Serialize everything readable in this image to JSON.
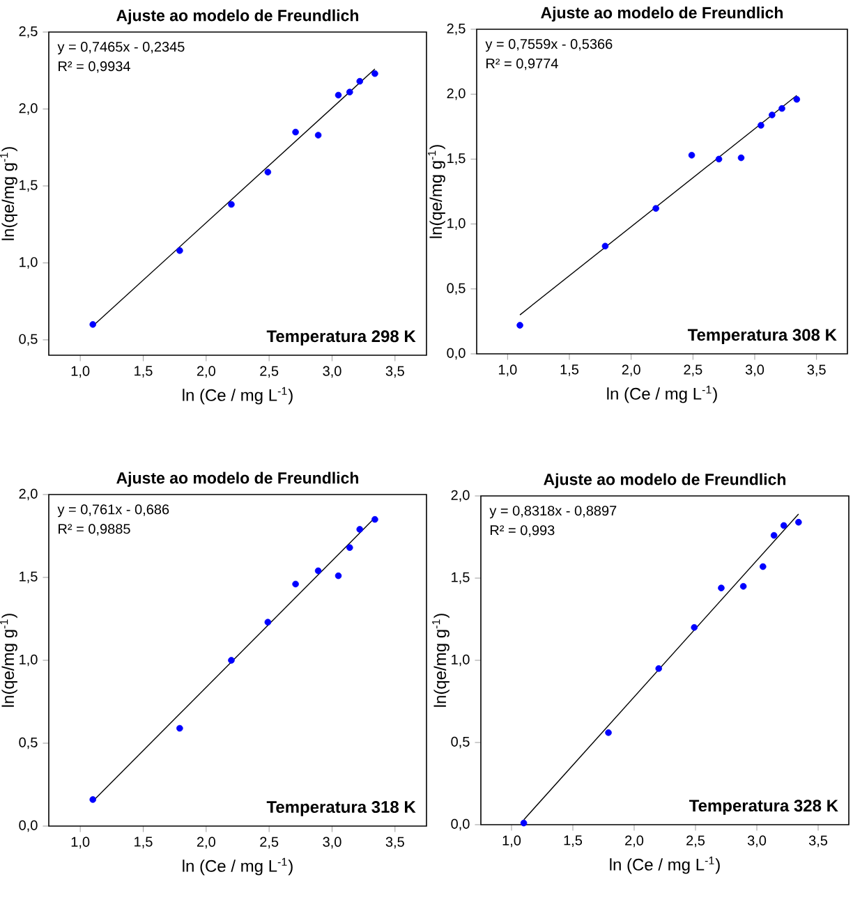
{
  "chart_data": [
    {
      "type": "scatter",
      "title": "Ajuste ao modelo de Freundlich",
      "xlabel": "ln (Ce / mg L$^{-1}$)",
      "ylabel": "ln(qe/mg g$^{-1}$)",
      "annotations": [
        "y = 0,7465x - 0,2345",
        "R² = 0,9934",
        "Temperatura 298 K"
      ],
      "xlim": [
        0.75,
        3.75
      ],
      "ylim": [
        0.4,
        2.5
      ],
      "xticks": [
        {
          "value": 1.0,
          "label": "1,0"
        },
        {
          "value": 1.5,
          "label": "1,5"
        },
        {
          "value": 2.0,
          "label": "2,0"
        },
        {
          "value": 2.5,
          "label": "2,5"
        },
        {
          "value": 3.0,
          "label": "3,0"
        },
        {
          "value": 3.5,
          "label": "3,5"
        }
      ],
      "yticks": [
        {
          "value": 0.5,
          "label": "0,5"
        },
        {
          "value": 1.0,
          "label": "1,0"
        },
        {
          "value": 1.5,
          "label": "1,5"
        },
        {
          "value": 2.0,
          "label": "2,0"
        },
        {
          "value": 2.5,
          "label": "2,5"
        }
      ],
      "grid": false,
      "series": [
        {
          "marker": "circle",
          "color": "#0000ff",
          "x": [
            1.1,
            1.79,
            2.2,
            2.49,
            2.71,
            2.89,
            3.05,
            3.14,
            3.22,
            3.34
          ],
          "values": [
            0.6,
            1.08,
            1.38,
            1.59,
            1.85,
            1.83,
            2.09,
            2.11,
            2.18,
            2.23
          ]
        },
        {
          "type": "line",
          "marker": "none",
          "color": "#000000",
          "x": [
            1.1,
            3.34
          ],
          "values": [
            0.59,
            2.26
          ]
        }
      ]
    },
    {
      "type": "scatter",
      "title": "Ajuste ao modelo de Freundlich",
      "xlabel": "ln (Ce / mg L$^{-1}$)",
      "ylabel": "ln(qe/mg g$^{-1}$)",
      "annotations": [
        "y = 0,7559x - 0,5366",
        "R² = 0,9774",
        "Temperatura 308 K"
      ],
      "xlim": [
        0.75,
        3.75
      ],
      "ylim": [
        0.0,
        2.5
      ],
      "xticks": [
        {
          "value": 1.0,
          "label": "1,0"
        },
        {
          "value": 1.5,
          "label": "1,5"
        },
        {
          "value": 2.0,
          "label": "2,0"
        },
        {
          "value": 2.5,
          "label": "2,5"
        },
        {
          "value": 3.0,
          "label": "3,0"
        },
        {
          "value": 3.5,
          "label": "3,5"
        }
      ],
      "yticks": [
        {
          "value": 0.0,
          "label": "0,0"
        },
        {
          "value": 0.5,
          "label": "0,5"
        },
        {
          "value": 1.0,
          "label": "1,0"
        },
        {
          "value": 1.5,
          "label": "1,5"
        },
        {
          "value": 2.0,
          "label": "2,0"
        },
        {
          "value": 2.5,
          "label": "2,5"
        }
      ],
      "grid": false,
      "series": [
        {
          "marker": "circle",
          "color": "#0000ff",
          "x": [
            1.1,
            1.79,
            2.2,
            2.49,
            2.71,
            2.89,
            3.05,
            3.14,
            3.22,
            3.34
          ],
          "values": [
            0.22,
            0.83,
            1.12,
            1.53,
            1.5,
            1.51,
            1.76,
            1.84,
            1.89,
            1.96
          ]
        },
        {
          "type": "line",
          "marker": "none",
          "color": "#000000",
          "x": [
            1.1,
            3.34
          ],
          "values": [
            0.3,
            1.99
          ]
        }
      ]
    },
    {
      "type": "scatter",
      "title": "Ajuste ao modelo de Freundlich",
      "xlabel": "ln (Ce / mg L$^{-1}$)",
      "ylabel": "ln(qe/mg g$^{-1}$)",
      "annotations": [
        "y = 0,761x - 0,686",
        "R² = 0,9885",
        "Temperatura 318 K"
      ],
      "xlim": [
        0.75,
        3.75
      ],
      "ylim": [
        0.0,
        2.0
      ],
      "xticks": [
        {
          "value": 1.0,
          "label": "1,0"
        },
        {
          "value": 1.5,
          "label": "1,5"
        },
        {
          "value": 2.0,
          "label": "2,0"
        },
        {
          "value": 2.5,
          "label": "2,5"
        },
        {
          "value": 3.0,
          "label": "3,0"
        },
        {
          "value": 3.5,
          "label": "3,5"
        }
      ],
      "yticks": [
        {
          "value": 0.0,
          "label": "0,0"
        },
        {
          "value": 0.5,
          "label": "0,5"
        },
        {
          "value": 1.0,
          "label": "1,0"
        },
        {
          "value": 1.5,
          "label": "1,5"
        },
        {
          "value": 2.0,
          "label": "2,0"
        }
      ],
      "grid": false,
      "series": [
        {
          "marker": "circle",
          "color": "#0000ff",
          "x": [
            1.1,
            1.79,
            2.2,
            2.49,
            2.71,
            2.89,
            3.05,
            3.14,
            3.22,
            3.34
          ],
          "values": [
            0.16,
            0.59,
            1.0,
            1.23,
            1.46,
            1.54,
            1.51,
            1.68,
            1.79,
            1.85
          ]
        },
        {
          "type": "line",
          "marker": "none",
          "color": "#000000",
          "x": [
            1.1,
            3.34
          ],
          "values": [
            0.15,
            1.86
          ]
        }
      ]
    },
    {
      "type": "scatter",
      "title": "Ajuste ao modelo de Freundlich",
      "xlabel": "ln (Ce / mg L$^{-1}$)",
      "ylabel": "ln(qe/mg g$^{-1}$)",
      "annotations": [
        "y = 0,8318x - 0,8897",
        "R² = 0,993",
        "Temperatura 328 K"
      ],
      "xlim": [
        0.75,
        3.75
      ],
      "ylim": [
        0.0,
        2.0
      ],
      "xticks": [
        {
          "value": 1.0,
          "label": "1,0"
        },
        {
          "value": 1.5,
          "label": "1,5"
        },
        {
          "value": 2.0,
          "label": "2,0"
        },
        {
          "value": 2.5,
          "label": "2,5"
        },
        {
          "value": 3.0,
          "label": "3,0"
        },
        {
          "value": 3.5,
          "label": "3,5"
        }
      ],
      "yticks": [
        {
          "value": 0.0,
          "label": "0,0"
        },
        {
          "value": 0.5,
          "label": "0,5"
        },
        {
          "value": 1.0,
          "label": "1,0"
        },
        {
          "value": 1.5,
          "label": "1,5"
        },
        {
          "value": 2.0,
          "label": "2,0"
        }
      ],
      "grid": false,
      "series": [
        {
          "marker": "circle",
          "color": "#0000ff",
          "x": [
            1.1,
            1.79,
            2.2,
            2.49,
            2.71,
            2.89,
            3.05,
            3.14,
            3.22,
            3.34
          ],
          "values": [
            0.01,
            0.56,
            0.95,
            1.2,
            1.44,
            1.45,
            1.57,
            1.76,
            1.82,
            1.84
          ]
        },
        {
          "type": "line",
          "marker": "none",
          "color": "#000000",
          "x": [
            1.1,
            3.34
          ],
          "values": [
            0.03,
            1.89
          ]
        }
      ]
    }
  ]
}
